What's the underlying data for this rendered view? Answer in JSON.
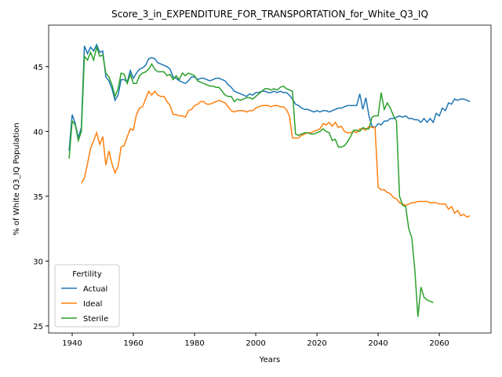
{
  "chart_data": {
    "type": "line",
    "title": "Score_3_in_EXPENDITURE_FOR_TRANSPORTATION_for_White_Q3_IQ",
    "xlabel": "Years",
    "ylabel": "% of White Q3_IQ Population",
    "legend_title": "Fertility",
    "legend_position": "lower left",
    "grid": false,
    "xlim": [
      1932.3,
      2076.9
    ],
    "ylim": [
      24.45,
      48.2
    ],
    "xticks": [
      1940,
      1960,
      1980,
      2000,
      2020,
      2040,
      2060
    ],
    "yticks": [
      25,
      30,
      35,
      40,
      45
    ],
    "x": [
      1939,
      1940,
      1941,
      1942,
      1943,
      1944,
      1945,
      1946,
      1947,
      1948,
      1949,
      1950,
      1951,
      1952,
      1953,
      1954,
      1955,
      1956,
      1957,
      1958,
      1959,
      1960,
      1961,
      1962,
      1963,
      1964,
      1965,
      1966,
      1967,
      1968,
      1969,
      1970,
      1971,
      1972,
      1973,
      1974,
      1975,
      1976,
      1977,
      1978,
      1979,
      1980,
      1981,
      1982,
      1983,
      1984,
      1985,
      1986,
      1987,
      1988,
      1989,
      1990,
      1991,
      1992,
      1993,
      1994,
      1995,
      1996,
      1997,
      1998,
      1999,
      2000,
      2001,
      2002,
      2003,
      2004,
      2005,
      2006,
      2007,
      2008,
      2009,
      2010,
      2011,
      2012,
      2013,
      2014,
      2015,
      2016,
      2017,
      2018,
      2019,
      2020,
      2021,
      2022,
      2023,
      2024,
      2025,
      2026,
      2027,
      2028,
      2029,
      2030,
      2031,
      2032,
      2033,
      2034,
      2035,
      2036,
      2037,
      2038,
      2039,
      2040,
      2041,
      2042,
      2043,
      2044,
      2045,
      2046,
      2047,
      2048,
      2049,
      2050,
      2051,
      2052,
      2053,
      2054,
      2055,
      2056,
      2057,
      2058,
      2059,
      2060,
      2061,
      2062,
      2063,
      2064,
      2065,
      2066,
      2067,
      2068,
      2069,
      2070
    ],
    "series": [
      {
        "name": "Actual",
        "color": "#1f77b4",
        "values": [
          38.5,
          41.3,
          40.6,
          39.5,
          40.3,
          46.6,
          46.0,
          46.5,
          46.2,
          46.7,
          46.1,
          46.2,
          44.2,
          43.9,
          43.3,
          42.4,
          42.8,
          44.0,
          44.0,
          43.8,
          44.7,
          44.1,
          44.5,
          44.8,
          44.9,
          45.1,
          45.6,
          45.7,
          45.6,
          45.3,
          45.2,
          45.1,
          45.0,
          44.8,
          44.2,
          44.1,
          43.9,
          43.8,
          43.7,
          43.9,
          44.2,
          44.2,
          44.0,
          44.1,
          44.1,
          44.0,
          43.9,
          44.0,
          44.1,
          44.1,
          44.0,
          43.9,
          43.6,
          43.4,
          43.1,
          43.0,
          42.9,
          42.8,
          42.7,
          42.9,
          42.8,
          43.0,
          43.0,
          43.1,
          43.1,
          43.0,
          43.0,
          43.1,
          43.0,
          43.1,
          43.0,
          43.0,
          42.8,
          42.5,
          42.1,
          42.0,
          41.8,
          41.7,
          41.7,
          41.6,
          41.5,
          41.6,
          41.5,
          41.6,
          41.6,
          41.5,
          41.6,
          41.7,
          41.8,
          41.8,
          41.9,
          42.0,
          42.0,
          42.0,
          42.0,
          42.9,
          41.7,
          42.6,
          41.2,
          40.4,
          40.3,
          40.6,
          40.5,
          40.8,
          40.8,
          41.0,
          41.0,
          41.1,
          41.2,
          41.1,
          41.2,
          41.0,
          41.0,
          40.9,
          40.9,
          40.7,
          41.0,
          40.7,
          41.0,
          40.7,
          41.4,
          41.2,
          41.8,
          41.6,
          42.2,
          42.1,
          42.5,
          42.4,
          42.5,
          42.5,
          42.4,
          42.3
        ]
      },
      {
        "name": "Ideal",
        "color": "#ff7f0e",
        "values": [
          null,
          null,
          null,
          null,
          36.0,
          36.4,
          37.5,
          38.7,
          39.3,
          39.9,
          39.0,
          39.6,
          37.4,
          38.5,
          37.5,
          36.8,
          37.3,
          38.8,
          38.9,
          39.6,
          40.2,
          40.1,
          41.3,
          41.8,
          41.9,
          42.5,
          43.1,
          42.8,
          43.1,
          42.8,
          42.7,
          42.7,
          42.3,
          42.0,
          41.3,
          41.3,
          41.2,
          41.2,
          41.1,
          41.6,
          41.7,
          42.0,
          42.1,
          42.3,
          42.3,
          42.1,
          42.1,
          42.2,
          42.3,
          42.4,
          42.3,
          42.2,
          41.9,
          41.6,
          41.5,
          41.6,
          41.6,
          41.6,
          41.5,
          41.6,
          41.6,
          41.8,
          41.9,
          42.0,
          42.0,
          42.0,
          41.9,
          42.0,
          42.0,
          41.9,
          41.9,
          41.7,
          41.2,
          39.5,
          39.5,
          39.5,
          39.7,
          39.8,
          39.9,
          39.9,
          40.0,
          40.1,
          40.2,
          40.6,
          40.5,
          40.7,
          40.4,
          40.7,
          40.3,
          40.4,
          40.0,
          39.9,
          39.9,
          40.0,
          39.9,
          40.2,
          40.2,
          40.1,
          40.4,
          40.3,
          40.3,
          35.7,
          35.5,
          35.5,
          35.3,
          35.2,
          34.9,
          34.8,
          34.5,
          34.4,
          34.3,
          34.4,
          34.5,
          34.5,
          34.6,
          34.6,
          34.6,
          34.6,
          34.5,
          34.5,
          34.5,
          34.4,
          34.4,
          34.4,
          34.0,
          34.2,
          33.7,
          33.9,
          33.5,
          33.6,
          33.4,
          33.5
        ]
      },
      {
        "name": "Sterile",
        "color": "#2ca02c",
        "values": [
          37.9,
          40.8,
          40.5,
          39.3,
          40.0,
          45.8,
          45.5,
          46.1,
          45.5,
          46.5,
          45.8,
          45.9,
          44.5,
          44.2,
          43.6,
          42.7,
          43.3,
          44.5,
          44.4,
          43.7,
          44.4,
          43.7,
          43.7,
          44.3,
          44.5,
          44.6,
          44.8,
          45.2,
          44.8,
          44.6,
          44.6,
          44.6,
          44.3,
          44.4,
          44.0,
          44.3,
          44.0,
          44.5,
          44.3,
          44.5,
          44.4,
          44.3,
          43.9,
          43.8,
          43.7,
          43.6,
          43.5,
          43.5,
          43.4,
          43.4,
          43.1,
          42.8,
          42.7,
          42.7,
          42.3,
          42.5,
          42.4,
          42.5,
          42.6,
          42.6,
          42.5,
          42.7,
          42.9,
          43.1,
          43.3,
          43.3,
          43.2,
          43.3,
          43.2,
          43.4,
          43.5,
          43.3,
          43.2,
          43.1,
          39.8,
          39.7,
          39.8,
          39.9,
          39.9,
          39.8,
          39.8,
          39.9,
          40.0,
          40.2,
          40.0,
          39.9,
          39.3,
          39.4,
          38.8,
          38.8,
          38.9,
          39.2,
          39.6,
          40.1,
          40.1,
          40.0,
          40.3,
          40.2,
          40.2,
          41.1,
          41.2,
          41.2,
          43.0,
          41.7,
          42.2,
          41.8,
          41.2,
          40.8,
          35.0,
          34.3,
          34.2,
          32.5,
          31.8,
          29.3,
          25.7,
          28.0,
          27.2,
          27.0,
          26.9,
          26.8,
          null,
          null,
          null,
          null,
          null,
          null,
          null,
          null,
          null,
          null,
          null,
          null
        ]
      }
    ]
  }
}
